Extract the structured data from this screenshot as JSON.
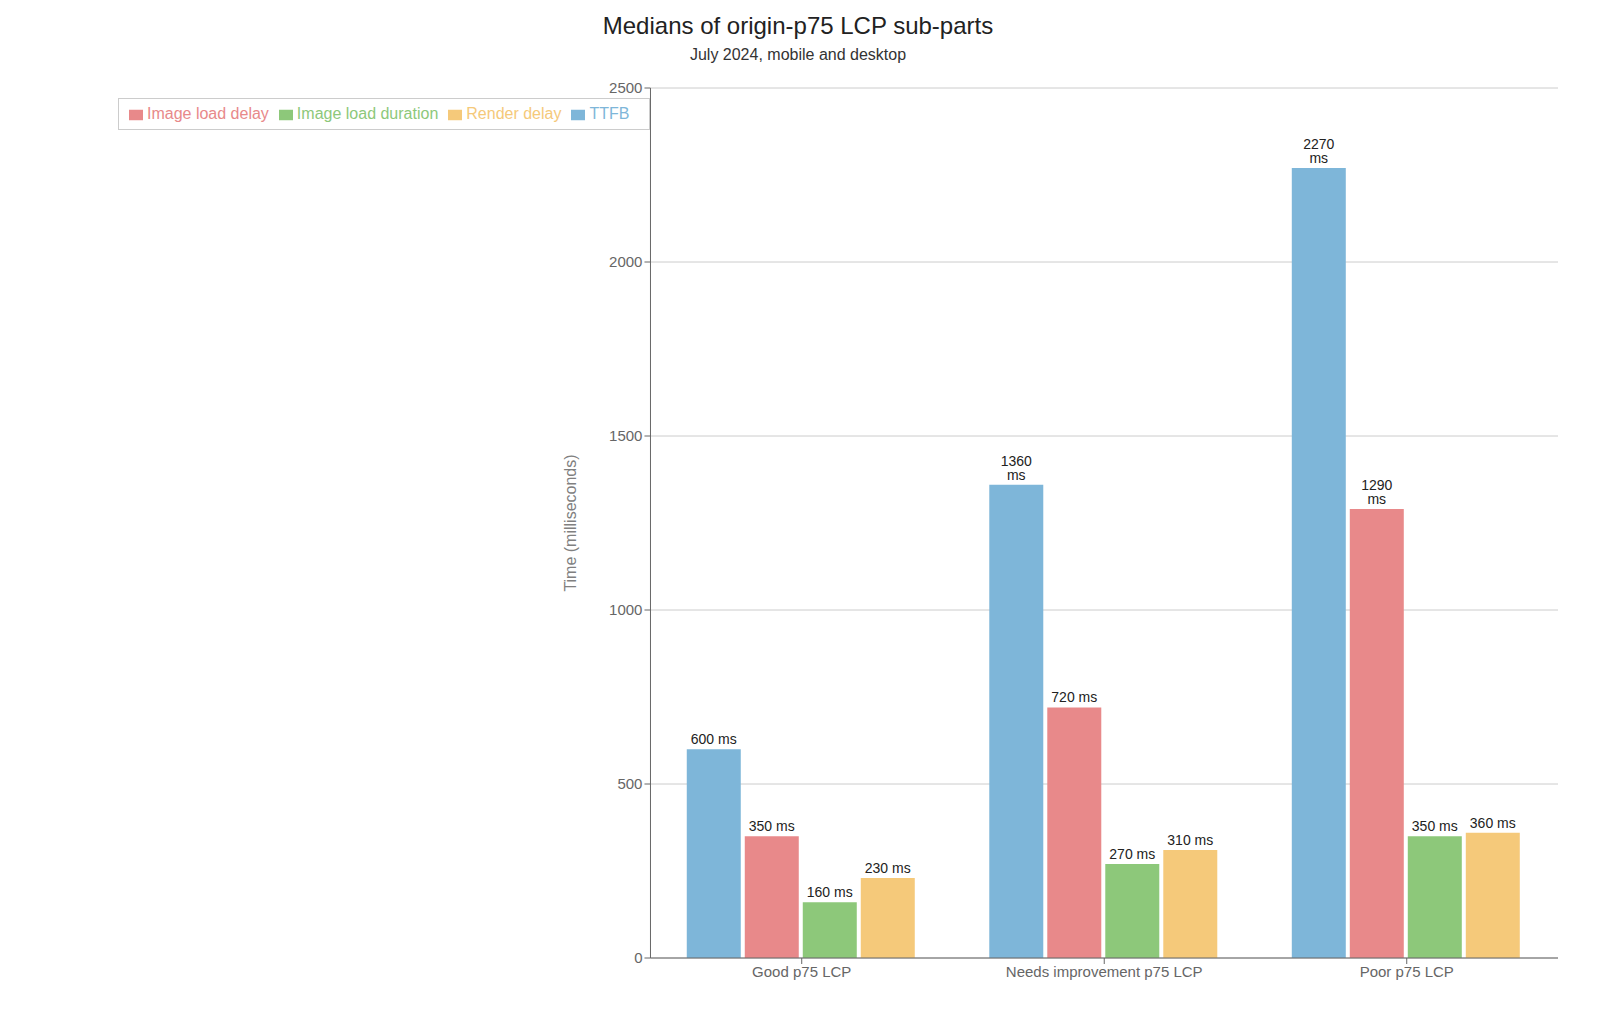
{
  "chart_data": {
    "type": "bar",
    "title": "Medians of origin-p75 LCP sub-parts",
    "subtitle": "July 2024, mobile and desktop",
    "categories": [
      "Good p75 LCP",
      "Needs improvement p75 LCP",
      "Poor p75 LCP"
    ],
    "series": [
      {
        "name": "TTFB",
        "color": "#7eb6d9",
        "values": [
          600,
          1360,
          2270
        ],
        "value_labels": [
          "600 ms",
          "1360 ms",
          "2270 ms"
        ]
      },
      {
        "name": "Image load delay",
        "color": "#e8898a",
        "values": [
          350,
          720,
          1290
        ],
        "value_labels": [
          "350 ms",
          "720 ms",
          "1290 ms"
        ]
      },
      {
        "name": "Image load duration",
        "color": "#8dc87a",
        "values": [
          160,
          270,
          350
        ],
        "value_labels": [
          "160 ms",
          "270 ms",
          "350 ms"
        ]
      },
      {
        "name": "Render delay",
        "color": "#f5c97a",
        "values": [
          230,
          310,
          360
        ],
        "value_labels": [
          "230 ms",
          "310 ms",
          "360 ms"
        ]
      }
    ],
    "ylabel": "Time (milliseconds)",
    "ylim": [
      0,
      2500
    ],
    "yticks": [
      0,
      500,
      1000,
      1500,
      2000,
      2500
    ],
    "grid": true,
    "legend": "upper left"
  }
}
